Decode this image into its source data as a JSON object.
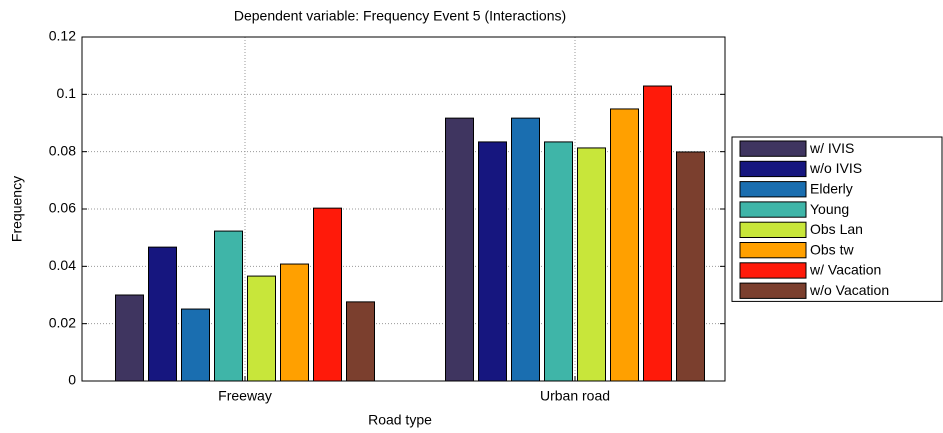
{
  "chart_data": {
    "type": "bar",
    "title": "Dependent variable: Frequency Event 5 (Interactions)",
    "x_label": "Road type",
    "y_label": "Frequency",
    "categories": [
      "Freeway",
      "Urban road"
    ],
    "series": [
      {
        "name": "w/ IVIS",
        "color": "#3f3560",
        "values": [
          0.03,
          0.0917
        ]
      },
      {
        "name": "w/o IVIS",
        "color": "#16167f",
        "values": [
          0.0467,
          0.0834
        ]
      },
      {
        "name": "Elderly",
        "color": "#1a6eb0",
        "values": [
          0.0251,
          0.0917
        ]
      },
      {
        "name": "Young",
        "color": "#3fb5a8",
        "values": [
          0.0523,
          0.0834
        ]
      },
      {
        "name": "Obs Lan",
        "color": "#c8e63a",
        "values": [
          0.0366,
          0.0813
        ]
      },
      {
        "name": "Obs tw",
        "color": "#ffa000",
        "values": [
          0.0408,
          0.0949
        ]
      },
      {
        "name": "w/ Vacation",
        "color": "#ff1a0a",
        "values": [
          0.0603,
          0.1029
        ]
      },
      {
        "name": "w/o Vacation",
        "color": "#7b3f2e",
        "values": [
          0.0276,
          0.0799
        ]
      }
    ],
    "ylim": [
      0,
      0.12
    ],
    "yticks": [
      0,
      0.02,
      0.04,
      0.06,
      0.08,
      0.1,
      0.12
    ],
    "grid": true,
    "legend": "right"
  }
}
